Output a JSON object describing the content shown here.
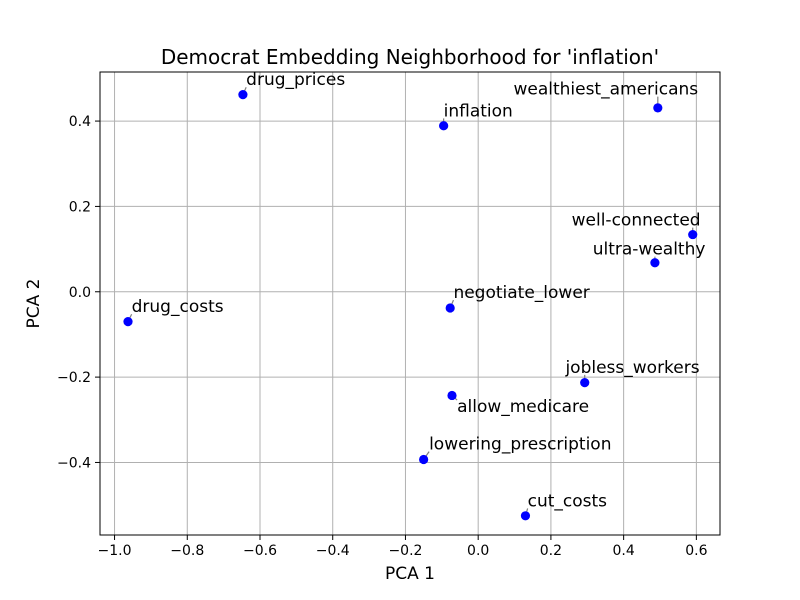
{
  "chart_data": {
    "type": "scatter",
    "title": "Democrat Embedding Neighborhood for 'inflation'",
    "xlabel": "PCA 1",
    "ylabel": "PCA 2",
    "xlim": [
      -1.04,
      0.665
    ],
    "ylim": [
      -0.57,
      0.515
    ],
    "xticks": [
      -1.0,
      -0.8,
      -0.6,
      -0.4,
      -0.2,
      0.0,
      0.2,
      0.4,
      0.6
    ],
    "xtick_labels": [
      "−1.0",
      "−0.8",
      "−0.6",
      "−0.4",
      "−0.2",
      "0.0",
      "0.2",
      "0.4",
      "0.6"
    ],
    "yticks": [
      -0.4,
      -0.2,
      0.0,
      0.2,
      0.4
    ],
    "ytick_labels": [
      "−0.4",
      "−0.2",
      "0.0",
      "0.2",
      "0.4"
    ],
    "grid": true,
    "point_color": "#0000ff",
    "points": [
      {
        "label": "drug_prices",
        "x": -0.647,
        "y": 0.462,
        "lx": -0.638,
        "ly": 0.484
      },
      {
        "label": "inflation",
        "x": -0.095,
        "y": 0.389,
        "lx": -0.095,
        "ly": 0.411
      },
      {
        "label": "wealthiest_americans",
        "x": 0.494,
        "y": 0.431,
        "lx": 0.097,
        "ly": 0.462
      },
      {
        "label": "well-connected",
        "x": 0.59,
        "y": 0.134,
        "lx": 0.257,
        "ly": 0.155
      },
      {
        "label": "ultra-wealthy",
        "x": 0.486,
        "y": 0.068,
        "lx": 0.315,
        "ly": 0.087
      },
      {
        "label": "drug_costs",
        "x": -0.963,
        "y": -0.07,
        "lx": -0.953,
        "ly": -0.048
      },
      {
        "label": "negotiate_lower",
        "x": -0.077,
        "y": -0.038,
        "lx": -0.068,
        "ly": -0.015
      },
      {
        "label": "jobless_workers",
        "x": 0.293,
        "y": -0.213,
        "lx": 0.24,
        "ly": -0.19
      },
      {
        "label": "allow_medicare",
        "x": -0.072,
        "y": -0.243,
        "lx": -0.058,
        "ly": -0.282
      },
      {
        "label": "lowering_prescription",
        "x": -0.15,
        "y": -0.393,
        "lx": -0.135,
        "ly": -0.37
      },
      {
        "label": "cut_costs",
        "x": 0.13,
        "y": -0.525,
        "lx": 0.136,
        "ly": -0.503
      }
    ]
  }
}
